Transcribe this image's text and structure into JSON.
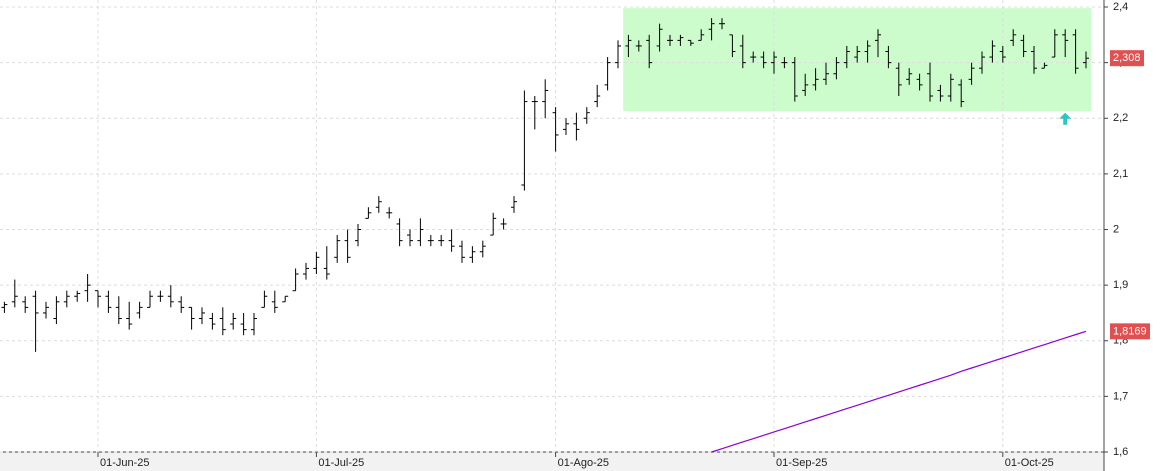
{
  "chart_data": {
    "type": "ohlc",
    "categories": [
      null,
      null,
      null,
      null,
      null,
      null,
      null,
      null,
      null,
      "01-Jun-25",
      null,
      null,
      null,
      null,
      null,
      null,
      null,
      null,
      null,
      null,
      null,
      null,
      null,
      null,
      null,
      null,
      null,
      null,
      null,
      null,
      "01-Jul-25",
      null,
      null,
      null,
      null,
      null,
      null,
      null,
      null,
      null,
      null,
      null,
      null,
      null,
      null,
      null,
      null,
      null,
      null,
      null,
      null,
      null,
      null,
      "01-Ago-25",
      null,
      null,
      null,
      null,
      null,
      null,
      null,
      null,
      null,
      null,
      null,
      null,
      null,
      null,
      null,
      null,
      null,
      null,
      null,
      null,
      "01-Sep-25",
      null,
      null,
      null,
      null,
      null,
      null,
      null,
      null,
      null,
      null,
      null,
      null,
      null,
      null,
      null,
      null,
      null,
      null,
      null,
      null,
      null,
      "01-Oct-25",
      null,
      null,
      null,
      null,
      null,
      null,
      null,
      null
    ],
    "open": [
      1.86,
      1.87,
      1.87,
      1.88,
      1.85,
      1.84,
      1.87,
      1.88,
      1.89,
      1.89,
      1.88,
      1.86,
      1.84,
      1.85,
      1.86,
      1.88,
      1.88,
      1.87,
      1.86,
      1.84,
      1.84,
      1.84,
      1.83,
      1.83,
      1.82,
      1.86,
      1.87,
      1.87,
      1.89,
      1.92,
      1.93,
      1.93,
      1.95,
      1.98,
      1.98,
      2.02,
      2.04,
      2.03,
      2.01,
      1.99,
      1.98,
      1.98,
      1.98,
      1.98,
      1.97,
      1.95,
      1.96,
      1.99,
      2.01,
      2.04,
      2.08,
      2.23,
      2.23,
      2.21,
      2.18,
      2.19,
      2.2,
      2.23,
      2.26,
      2.3,
      2.33,
      2.33,
      2.34,
      2.33,
      2.34,
      2.34,
      2.34,
      2.34,
      2.36,
      2.37,
      2.35,
      2.33,
      2.31,
      2.31,
      2.3,
      2.3,
      2.3,
      2.25,
      2.26,
      2.27,
      2.28,
      2.3,
      2.31,
      2.32,
      2.34,
      2.32,
      2.29,
      2.27,
      2.27,
      2.28,
      2.25,
      2.24,
      2.26,
      2.27,
      2.29,
      2.31,
      2.32,
      2.34,
      2.34,
      2.32,
      2.29,
      2.31,
      2.35,
      2.35,
      2.3
    ],
    "high": [
      1.87,
      1.91,
      1.88,
      1.89,
      1.87,
      1.88,
      1.89,
      1.89,
      1.92,
      1.89,
      1.89,
      1.88,
      1.87,
      1.87,
      1.89,
      1.89,
      1.9,
      1.88,
      1.86,
      1.86,
      1.85,
      1.86,
      1.85,
      1.85,
      1.85,
      1.89,
      1.89,
      1.88,
      1.93,
      1.94,
      1.96,
      1.97,
      1.99,
      2.0,
      2.01,
      2.04,
      2.06,
      2.04,
      2.02,
      2.0,
      2.02,
      1.99,
      1.99,
      2.0,
      1.98,
      1.97,
      1.98,
      2.03,
      2.02,
      2.06,
      2.25,
      2.24,
      2.27,
      2.22,
      2.2,
      2.21,
      2.22,
      2.26,
      2.31,
      2.34,
      2.35,
      2.34,
      2.35,
      2.37,
      2.35,
      2.35,
      2.34,
      2.36,
      2.38,
      2.38,
      2.35,
      2.35,
      2.32,
      2.32,
      2.32,
      2.31,
      2.31,
      2.28,
      2.29,
      2.3,
      2.31,
      2.33,
      2.33,
      2.34,
      2.36,
      2.33,
      2.3,
      2.29,
      2.28,
      2.3,
      2.26,
      2.28,
      2.27,
      2.3,
      2.32,
      2.34,
      2.33,
      2.36,
      2.35,
      2.33,
      2.3,
      2.36,
      2.36,
      2.36,
      2.32
    ],
    "low": [
      1.85,
      1.86,
      1.85,
      1.78,
      1.84,
      1.83,
      1.86,
      1.87,
      1.87,
      1.86,
      1.85,
      1.83,
      1.82,
      1.84,
      1.86,
      1.87,
      1.86,
      1.85,
      1.82,
      1.83,
      1.82,
      1.81,
      1.82,
      1.81,
      1.81,
      1.86,
      1.85,
      1.87,
      1.89,
      1.91,
      1.92,
      1.91,
      1.94,
      1.94,
      1.97,
      2.02,
      2.03,
      2.02,
      1.97,
      1.97,
      1.97,
      1.97,
      1.97,
      1.96,
      1.94,
      1.94,
      1.95,
      1.99,
      2.0,
      2.03,
      2.07,
      2.18,
      2.2,
      2.14,
      2.17,
      2.16,
      2.19,
      2.22,
      2.25,
      2.29,
      2.31,
      2.32,
      2.29,
      2.32,
      2.33,
      2.33,
      2.33,
      2.34,
      2.34,
      2.36,
      2.31,
      2.29,
      2.3,
      2.29,
      2.28,
      2.29,
      2.23,
      2.24,
      2.25,
      2.26,
      2.27,
      2.29,
      2.3,
      2.3,
      2.31,
      2.29,
      2.24,
      2.26,
      2.25,
      2.23,
      2.23,
      2.23,
      2.22,
      2.26,
      2.28,
      2.3,
      2.3,
      2.33,
      2.31,
      2.28,
      2.29,
      2.31,
      2.31,
      2.28,
      2.29
    ],
    "close": [
      1.865,
      1.88,
      1.86,
      1.85,
      1.86,
      1.87,
      1.88,
      1.885,
      1.9,
      1.88,
      1.86,
      1.84,
      1.83,
      1.86,
      1.88,
      1.88,
      1.87,
      1.86,
      1.84,
      1.85,
      1.83,
      1.82,
      1.84,
      1.82,
      1.84,
      1.88,
      1.86,
      1.88,
      1.92,
      1.93,
      1.95,
      1.92,
      1.98,
      1.95,
      2.0,
      2.03,
      2.05,
      2.03,
      1.98,
      1.98,
      2.0,
      1.98,
      1.98,
      1.97,
      1.95,
      1.96,
      1.97,
      2.02,
      2.01,
      2.05,
      2.23,
      2.23,
      2.25,
      2.17,
      2.19,
      2.18,
      2.21,
      2.24,
      2.3,
      2.33,
      2.34,
      2.33,
      2.3,
      2.36,
      2.34,
      2.345,
      2.335,
      2.35,
      2.37,
      2.37,
      2.32,
      2.3,
      2.31,
      2.3,
      2.31,
      2.3,
      2.24,
      2.26,
      2.27,
      2.28,
      2.3,
      2.32,
      2.32,
      2.33,
      2.35,
      2.3,
      2.26,
      2.28,
      2.26,
      2.24,
      2.24,
      2.27,
      2.23,
      2.29,
      2.31,
      2.33,
      2.31,
      2.35,
      2.32,
      2.29,
      2.295,
      2.35,
      2.34,
      2.29,
      2.308
    ],
    "close_label": "2,308",
    "color": "#000000",
    "lines": [
      {
        "color": "#8b00d9",
        "value_label": "1,8169",
        "values": [
          null,
          null,
          null,
          null,
          null,
          null,
          null,
          null,
          null,
          null,
          null,
          null,
          null,
          null,
          null,
          null,
          null,
          null,
          null,
          null,
          null,
          null,
          null,
          null,
          null,
          null,
          null,
          null,
          null,
          null,
          null,
          null,
          null,
          null,
          null,
          null,
          null,
          null,
          null,
          null,
          null,
          null,
          null,
          null,
          null,
          null,
          null,
          null,
          null,
          null,
          null,
          null,
          null,
          null,
          null,
          null,
          null,
          null,
          null,
          null,
          null,
          null,
          null,
          null,
          null,
          null,
          null,
          null,
          1.6,
          1.606,
          1.612,
          1.618,
          1.624,
          1.63,
          1.636,
          1.642,
          1.648,
          1.654,
          1.66,
          1.666,
          1.672,
          1.678,
          1.684,
          1.69,
          1.696,
          1.702,
          1.708,
          1.714,
          1.72,
          1.726,
          1.732,
          1.738,
          1.745,
          1.751,
          1.757,
          1.763,
          1.769,
          1.775,
          1.781,
          1.787,
          1.793,
          1.799,
          1.805,
          1.811,
          1.8169
        ]
      }
    ],
    "highlight": {
      "from": 60,
      "to": 104,
      "low": 2.213,
      "high": 2.398,
      "color": "#ccfccc"
    },
    "arrows": [
      {
        "index": 102,
        "value": 2.21,
        "color": "#2ec4c4"
      }
    ],
    "label_color": "#e05050",
    "ylim": [
      1.6,
      2.4126
    ],
    "yticks": [
      {
        "value": 1.6,
        "label": "1,6"
      },
      {
        "value": 1.7,
        "label": "1,7"
      },
      {
        "value": 1.8,
        "label": "1,8"
      },
      {
        "value": 1.9,
        "label": "1,9"
      },
      2,
      {
        "value": 2.1,
        "label": "2,1"
      },
      {
        "value": 2.2,
        "label": "2,2"
      },
      {
        "value": 2.3,
        "label": "2,3"
      },
      {
        "value": 2.4,
        "label": "2,4"
      }
    ],
    "grid": true
  }
}
